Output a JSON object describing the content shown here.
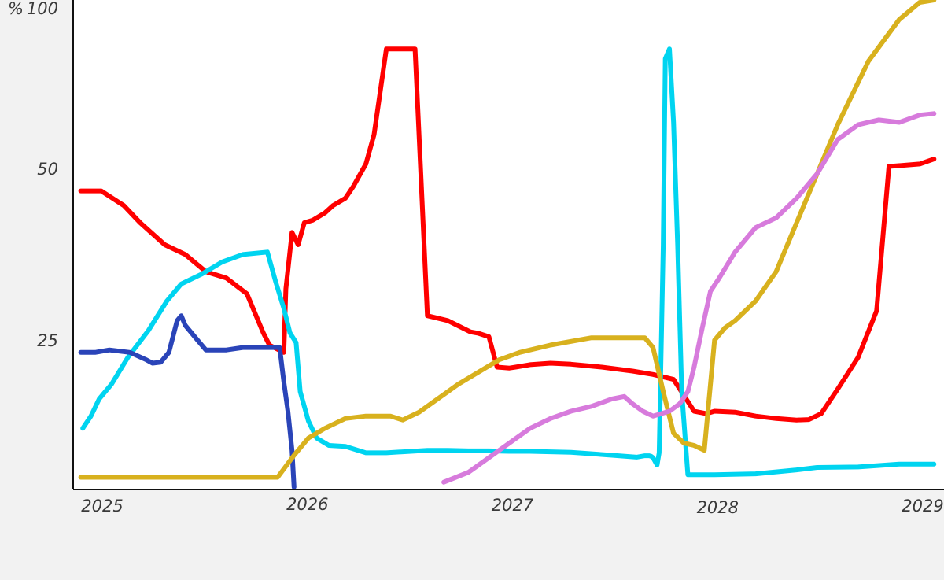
{
  "chart_data": {
    "type": "line",
    "title": "",
    "xlabel": "",
    "ylabel": "",
    "y_unit_label": "%",
    "xlim": [
      2025,
      2029.15
    ],
    "ylim": [
      0,
      100
    ],
    "x_ticks": [
      {
        "value": 2025,
        "label": "2025"
      },
      {
        "value": 2026,
        "label": "2026"
      },
      {
        "value": 2027,
        "label": "2027"
      },
      {
        "value": 2028,
        "label": "2028"
      },
      {
        "value": 2029,
        "label": "2029"
      }
    ],
    "y_ticks": [
      {
        "value": 100,
        "label": "100"
      },
      {
        "value": 50,
        "label": "50"
      },
      {
        "value": 25,
        "label": "25"
      }
    ],
    "grid": false,
    "legend": "none",
    "series": [
      {
        "color": "#ff0000",
        "x": [
          2025.01,
          2025.11,
          2025.22,
          2025.3,
          2025.42,
          2025.52,
          2025.62,
          2025.72,
          2025.82,
          2025.9,
          2025.93,
          2026.0,
          2026.01,
          2026.04,
          2026.07,
          2026.1,
          2026.14,
          2026.2,
          2026.24,
          2026.3,
          2026.34,
          2026.4,
          2026.44,
          2026.5,
          2026.55,
          2026.58,
          2026.64,
          2026.7,
          2026.8,
          2026.91,
          2026.95,
          2027.0,
          2027.04,
          2027.1,
          2027.13,
          2027.2,
          2027.3,
          2027.4,
          2027.55,
          2027.7,
          2027.8,
          2027.9,
          2028.0,
          2028.06,
          2028.1,
          2028.2,
          2028.3,
          2028.4,
          2028.5,
          2028.56,
          2028.62,
          2028.7,
          2028.8,
          2028.89,
          2028.95,
          2029.1,
          2029.17
        ],
        "values": [
          61.0,
          61.0,
          58.0,
          54.5,
          50.0,
          48.0,
          44.5,
          43.2,
          40.0,
          32.0,
          29.5,
          28.0,
          41.0,
          52.5,
          50.0,
          54.5,
          55.0,
          56.5,
          58.0,
          59.5,
          62.0,
          66.5,
          72.5,
          90.0,
          90.0,
          90.0,
          90.0,
          35.5,
          34.5,
          32.2,
          31.9,
          31.2,
          25.0,
          24.8,
          25.0,
          25.5,
          25.8,
          25.6,
          25.0,
          24.2,
          23.5,
          22.5,
          16.0,
          15.5,
          16.0,
          15.8,
          15.0,
          14.5,
          14.2,
          14.3,
          15.5,
          20.5,
          27.0,
          36.5,
          66.0,
          66.5,
          67.5
        ]
      },
      {
        "color": "#00d4f0",
        "x": [
          2025.02,
          2025.06,
          2025.1,
          2025.16,
          2025.24,
          2025.34,
          2025.43,
          2025.5,
          2025.6,
          2025.7,
          2025.8,
          2025.92,
          2025.96,
          2026.0,
          2026.03,
          2026.06,
          2026.08,
          2026.12,
          2026.16,
          2026.22,
          2026.3,
          2026.4,
          2026.5,
          2026.7,
          2026.8,
          2026.9,
          2027.0,
          2027.1,
          2027.2,
          2027.4,
          2027.6,
          2027.72,
          2027.76,
          2027.78,
          2027.79,
          2027.8,
          2027.82,
          2027.83,
          2027.85,
          2027.86,
          2027.88,
          2027.9,
          2027.92,
          2027.94,
          2027.97,
          2028.0,
          2028.1,
          2028.3,
          2028.5,
          2028.6,
          2028.8,
          2029.0,
          2029.17
        ],
        "values": [
          12.5,
          15.0,
          18.5,
          21.5,
          27.0,
          32.5,
          38.5,
          42.0,
          44.0,
          46.5,
          48.0,
          48.5,
          42.5,
          37.0,
          32.0,
          30.0,
          20.0,
          14.0,
          10.5,
          9.0,
          8.8,
          7.5,
          7.5,
          8.0,
          8.0,
          7.9,
          7.9,
          7.8,
          7.8,
          7.6,
          7.0,
          6.6,
          6.9,
          6.9,
          6.8,
          6.5,
          5.0,
          7.5,
          50.0,
          88.0,
          90.0,
          75.0,
          50.0,
          20.0,
          3.0,
          3.0,
          3.0,
          3.2,
          4.0,
          4.5,
          4.6,
          5.2,
          5.2
        ]
      },
      {
        "color": "#2a44b8",
        "x": [
          2025.01,
          2025.08,
          2025.15,
          2025.25,
          2025.33,
          2025.36,
          2025.4,
          2025.44,
          2025.48,
          2025.5,
          2025.52,
          2025.58,
          2025.62,
          2025.68,
          2025.72,
          2025.8,
          2025.92,
          2025.98,
          2026.0,
          2026.02,
          2026.04,
          2026.05
        ],
        "values": [
          28.0,
          28.0,
          28.5,
          28.0,
          26.5,
          25.8,
          26.0,
          28.0,
          34.5,
          35.5,
          33.5,
          30.5,
          28.5,
          28.5,
          28.5,
          29.0,
          29.0,
          29.0,
          22.0,
          16.0,
          8.0,
          0.5
        ]
      },
      {
        "color": "#d8b11e",
        "x": [
          2025.01,
          2025.15,
          2025.25,
          2025.35,
          2025.45,
          2025.55,
          2025.65,
          2025.75,
          2025.85,
          2025.97,
          2026.05,
          2026.12,
          2026.2,
          2026.3,
          2026.4,
          2026.52,
          2026.58,
          2026.66,
          2026.75,
          2026.85,
          2026.95,
          2027.05,
          2027.15,
          2027.3,
          2027.5,
          2027.7,
          2027.76,
          2027.8,
          2027.85,
          2027.9,
          2027.95,
          2028.0,
          2028.05,
          2028.1,
          2028.15,
          2028.2,
          2028.3,
          2028.4,
          2028.55,
          2028.7,
          2028.85,
          2029.0,
          2029.1,
          2029.17
        ],
        "values": [
          2.5,
          2.5,
          2.5,
          2.5,
          2.5,
          2.5,
          2.5,
          2.5,
          2.5,
          2.5,
          7.0,
          10.5,
          12.5,
          14.5,
          15.0,
          15.0,
          14.2,
          15.8,
          18.5,
          21.5,
          24.0,
          26.5,
          28.0,
          29.5,
          31.0,
          31.0,
          31.0,
          29.0,
          20.0,
          11.5,
          9.5,
          9.0,
          8.0,
          30.5,
          33.0,
          34.5,
          38.5,
          44.5,
          59.5,
          74.5,
          87.5,
          96.0,
          99.5,
          100.0
        ]
      },
      {
        "color": "#d77bdc",
        "x": [
          2026.78,
          2026.9,
          2027.0,
          2027.1,
          2027.2,
          2027.3,
          2027.4,
          2027.5,
          2027.6,
          2027.66,
          2027.7,
          2027.75,
          2027.8,
          2027.84,
          2027.88,
          2027.93,
          2027.97,
          2028.0,
          2028.04,
          2028.08,
          2028.12,
          2028.2,
          2028.3,
          2028.4,
          2028.5,
          2028.6,
          2028.7,
          2028.8,
          2028.9,
          2029.0,
          2029.1,
          2029.17
        ],
        "values": [
          1.5,
          3.5,
          6.5,
          9.5,
          12.5,
          14.5,
          16.0,
          17.0,
          18.5,
          19.0,
          17.5,
          16.0,
          15.0,
          15.5,
          16.0,
          17.5,
          20.0,
          25.0,
          33.0,
          40.5,
          43.0,
          48.5,
          53.5,
          55.5,
          59.5,
          64.5,
          71.5,
          74.5,
          75.5,
          75.0,
          76.5,
          76.8
        ]
      }
    ]
  }
}
